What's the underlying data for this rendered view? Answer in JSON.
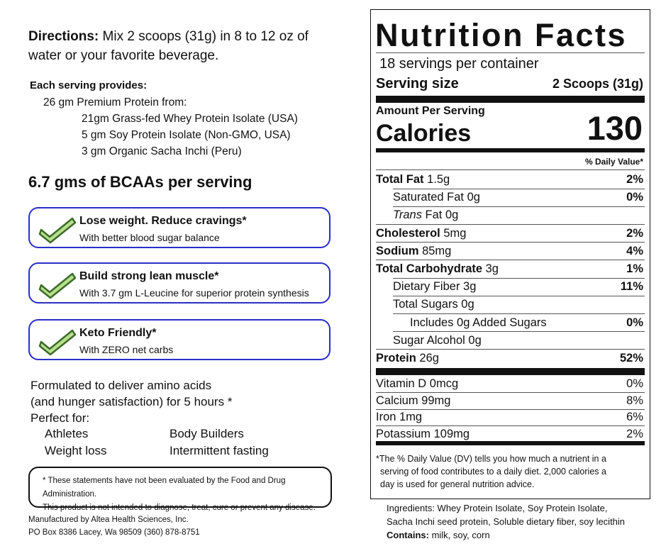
{
  "directions": {
    "label": "Directions:",
    "text": " Mix 2 scoops (31g) in 8 to 12 oz of water or your favorite beverage."
  },
  "serving_provides": {
    "heading": "Each serving provides:",
    "lines": [
      "26 gm Premium Protein from:",
      "21gm Grass-fed Whey Protein Isolate (USA)",
      "5 gm Soy Protein Isolate (Non-GMO, USA)",
      "3 gm Organic Sacha Inchi (Peru)"
    ]
  },
  "bcaa": "6.7 gms of BCAAs per serving",
  "benefits": [
    {
      "title": "Lose weight. Reduce cravings*",
      "subtitle": "With better blood sugar balance"
    },
    {
      "title": "Build strong lean muscle*",
      "subtitle": "With 3.7 gm L-Leucine for superior protein synthesis"
    },
    {
      "title": "Keto Friendly*",
      "subtitle": "With ZERO net carbs"
    }
  ],
  "formulated": {
    "line1": "Formulated to deliver amino acids",
    "line2": "(and hunger satisfaction) for 5 hours *",
    "perfect": "Perfect for:",
    "uses": [
      "Athletes",
      "Body Builders",
      "Weight loss",
      "Intermittent fasting"
    ]
  },
  "disclaimer": {
    "line1": "* These statements have not been evaluated by the Food and Drug Administration.",
    "line2": "This product is not intended to diagnose, treat, cure or prevent any disease."
  },
  "manufacturer": {
    "line1": "Manufactured by Altea Health Sciences, Inc.",
    "line2": "PO Box 8386 Lacey, Wa 98509  (360) 878-8751"
  },
  "nutrition": {
    "title": "Nutrition Facts",
    "servings": "18 servings per container",
    "serving_size_label": "Serving size",
    "serving_size_value": "2 Scoops (31g)",
    "amount_per_serving": "Amount Per Serving",
    "calories_label": "Calories",
    "calories_value": "130",
    "dv_header": "% Daily Value*",
    "nutrients": [
      {
        "name": "Total Fat",
        "amount": " 1.5g",
        "dv": "2%"
      },
      {
        "name": "Saturated Fat",
        "amount": " 0g",
        "dv": "0%"
      },
      {
        "name": "Trans",
        "amount": " Fat 0g",
        "dv": ""
      },
      {
        "name": "Cholesterol",
        "amount": " 5mg",
        "dv": "2%"
      },
      {
        "name": "Sodium",
        "amount": " 85mg",
        "dv": "4%"
      },
      {
        "name": "Total Carbohydrate",
        "amount": " 3g",
        "dv": "1%"
      },
      {
        "name": "Dietary Fiber",
        "amount": " 3g",
        "dv": "11%"
      },
      {
        "name": "Total Sugars",
        "amount": " 0g",
        "dv": ""
      },
      {
        "name": "Includes 0g Added Sugars",
        "amount": "",
        "dv": "0%"
      },
      {
        "name": "Sugar Alcohol",
        "amount": " 0g",
        "dv": ""
      },
      {
        "name": "Protein",
        "amount": " 26g",
        "dv": "52%"
      }
    ],
    "vitamins": [
      {
        "name": "Vitamin D 0mcg",
        "dv": "0%"
      },
      {
        "name": "Calcium 99mg",
        "dv": "8%"
      },
      {
        "name": "Iron 1mg",
        "dv": "6%"
      },
      {
        "name": "Potassium 109mg",
        "dv": "2%"
      }
    ],
    "footnote_line1": "The % Daily Value (DV) tells you how much a nutrient in a",
    "footnote_line2": "serving of food contributes to a daily diet. 2,000 calories a",
    "footnote_line3": "day is used for general nutrition advice.",
    "footnote_star": "*"
  },
  "ingredients": {
    "line1": "Ingredients: Whey Protein Isolate, Soy Protein Isolate,",
    "line2": "Sacha Inchi seed protein, Soluble dietary fiber, soy lecithin",
    "contains_label": "Contains:",
    "contains_value": " milk, soy, corn"
  },
  "colors": {
    "card_border": "#2a2fc8",
    "check_fill": "#b7df8c",
    "check_stroke": "#3d6b2a"
  },
  "icons": [
    "check-icon"
  ]
}
